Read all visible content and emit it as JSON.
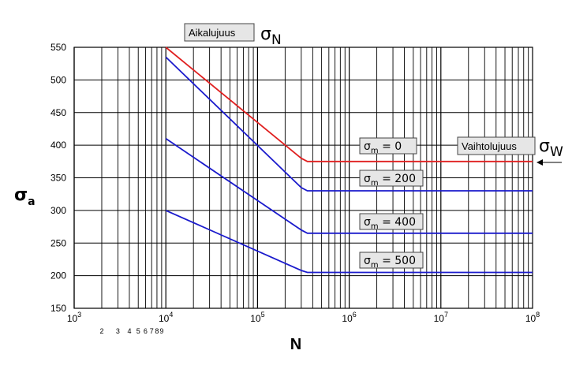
{
  "chart_data": {
    "type": "line",
    "x_scale": "log",
    "xlim": [
      1000,
      100000000
    ],
    "ylim": [
      150,
      550
    ],
    "x_ticks": [
      "10",
      "10",
      "10",
      "10",
      "10",
      "10"
    ],
    "x_tick_exps": [
      "3",
      "4",
      "5",
      "6",
      "7",
      "8"
    ],
    "x_minor_labels": [
      "2",
      "3",
      "4",
      "5",
      "6",
      "7",
      "8",
      "9"
    ],
    "y_ticks": [
      "150",
      "200",
      "250",
      "300",
      "350",
      "400",
      "450",
      "500",
      "550"
    ],
    "xlabel": "N",
    "ylabel": {
      "main": "σ",
      "sub": "a"
    },
    "grid": true,
    "series": [
      {
        "name": "σm = 0",
        "color": "#e02020",
        "label": {
          "main": "σ",
          "sub": "m",
          "rest": " = 0"
        },
        "x": [
          10000,
          300000,
          350000,
          100000000
        ],
        "y": [
          550,
          380,
          375,
          375
        ]
      },
      {
        "name": "σm = 200",
        "color": "#1a1acc",
        "label": {
          "main": "σ",
          "sub": "m",
          "rest": " = 200"
        },
        "x": [
          10000,
          300000,
          350000,
          100000000
        ],
        "y": [
          535,
          335,
          330,
          330
        ]
      },
      {
        "name": "σm = 400",
        "color": "#1a1acc",
        "label": {
          "main": "σ",
          "sub": "m",
          "rest": " = 400"
        },
        "x": [
          10000,
          300000,
          350000,
          100000000
        ],
        "y": [
          410,
          270,
          265,
          265
        ]
      },
      {
        "name": "σm = 500",
        "color": "#1a1acc",
        "label": {
          "main": "σ",
          "sub": "m",
          "rest": " = 500"
        },
        "x": [
          10000,
          300000,
          350000,
          100000000
        ],
        "y": [
          300,
          208,
          205,
          205
        ]
      }
    ],
    "annotations": {
      "aikalujuus": {
        "text": "Aikalujuus",
        "symbol": "σ",
        "sub": "N"
      },
      "vaihtolujuus": {
        "text": "Vaihtolujuus",
        "symbol": "σ",
        "sub": "W"
      }
    }
  }
}
